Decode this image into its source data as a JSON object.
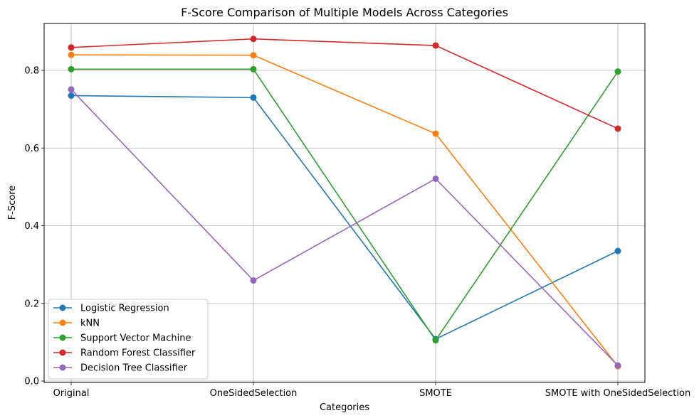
{
  "chart_data": {
    "type": "line",
    "title": "F-Score Comparison of Multiple Models Across Categories",
    "xlabel": "Categories",
    "ylabel": "F-Score",
    "categories": [
      "Original",
      "OneSidedSelection",
      "SMOTE",
      "SMOTE with OneSidedSelection"
    ],
    "ylim": [
      0.0,
      0.925
    ],
    "yticks": [
      0.0,
      0.2,
      0.4,
      0.6,
      0.8
    ],
    "ytick_labels": [
      "0.0",
      "0.2",
      "0.4",
      "0.6",
      "0.8"
    ],
    "grid": true,
    "legend_position": "lower-left",
    "series": [
      {
        "name": "Logistic Regression",
        "color": "#1f77b4",
        "values": [
          0.735,
          0.73,
          0.108,
          0.335
        ]
      },
      {
        "name": "kNN",
        "color": "#ff7f0e",
        "values": [
          0.84,
          0.839,
          0.637,
          0.038
        ]
      },
      {
        "name": "Support Vector Machine",
        "color": "#2ca02c",
        "values": [
          0.803,
          0.803,
          0.105,
          0.797
        ]
      },
      {
        "name": "Random Forest Classifier",
        "color": "#d62728",
        "values": [
          0.859,
          0.881,
          0.864,
          0.65
        ]
      },
      {
        "name": "Decision Tree Classifier",
        "color": "#9467bd",
        "values": [
          0.751,
          0.259,
          0.521,
          0.04
        ]
      }
    ]
  }
}
